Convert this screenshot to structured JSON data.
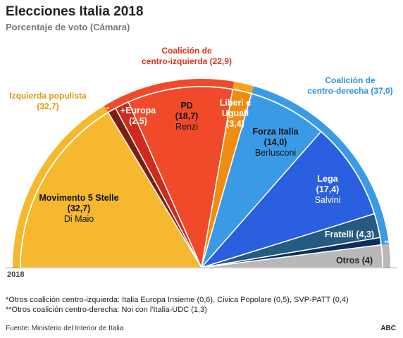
{
  "header": {
    "title": "Elecciones Italia 2018",
    "subtitle": "Porcentaje de voto (Cámara)"
  },
  "chart_data": {
    "type": "pie",
    "layout": "semicircle",
    "title": "Elecciones Italia 2018",
    "subtitle": "Porcentaje de voto (Cámara)",
    "slices": [
      {
        "name": "Movimento 5 Stelle",
        "value": 32.7,
        "label": "(32,7)",
        "leader": "Di Maio",
        "color": "#f5b82e",
        "group": "Izquierda populista"
      },
      {
        "name": "*",
        "value": 1.5,
        "label": "",
        "leader": "",
        "color": "#7a1f12",
        "group": "Coalición de centro-izquierda"
      },
      {
        "name": "+Europa",
        "value": 2.5,
        "label": "(2,5)",
        "leader": "",
        "color": "#cf2a1b",
        "group": "Coalición de centro-izquierda"
      },
      {
        "name": "PD",
        "value": 18.7,
        "label": "(18,7)",
        "leader": "Renzi",
        "color": "#f04a2a",
        "group": "Coalición de centro-izquierda"
      },
      {
        "name": "Liberi e Uguali",
        "value": 3.4,
        "label": "(3,4)",
        "leader": "",
        "color": "#f08c10",
        "group": ""
      },
      {
        "name": "Forza Italia",
        "value": 14.0,
        "label": "(14,0)",
        "leader": "Berlusconi",
        "color": "#3a9ae6",
        "group": "Coalición de centro-derecha"
      },
      {
        "name": "Lega",
        "value": 17.4,
        "label": "(17,4)",
        "leader": "Salvini",
        "color": "#2a5fe0",
        "group": "Coalición de centro-derecha"
      },
      {
        "name": "Fratelli",
        "value": 4.3,
        "label": "(4,3)",
        "leader": "",
        "color": "#255a82",
        "group": "Coalición de centro-derecha"
      },
      {
        "name": "**",
        "value": 1.3,
        "label": "",
        "leader": "",
        "color": "#0f2f5c",
        "group": "Coalición de centro-derecha"
      },
      {
        "name": "Otros",
        "value": 4.0,
        "label": "(4)",
        "leader": "",
        "color": "#b8b8b8",
        "group": ""
      }
    ],
    "coalitions": [
      {
        "name": "Izquierda populista",
        "value_label": "(32,7)",
        "color": "#f5b82e",
        "value": 32.7
      },
      {
        "name": "Coalición de centro-izquierda",
        "value_label": "(22,9)",
        "color": "#e8321e",
        "value": 22.9
      },
      {
        "name": "Coalición de centro-derecha",
        "value_label": "(37,0)",
        "color": "#3a9ae6",
        "value": 37.0
      }
    ],
    "coalition_label_lines": {
      "Izquierda populista": [
        "Izquierda populista",
        "(32,7)"
      ],
      "Coalición de centro-izquierda": [
        "Coalición de",
        "centro-izquierda (22,9)"
      ],
      "Coalición de centro-derecha": [
        "Coalición de",
        "centro-derecha (37,0)"
      ]
    },
    "slice_label_lines": {
      "Movimento 5 Stelle": [
        "Movimento 5 Stelle",
        "(32,7)",
        "Di Maio"
      ],
      "*": [
        "*"
      ],
      "+Europa": [
        "+Europa",
        "(2,5)"
      ],
      "PD": [
        "PD",
        "(18,7)",
        "Renzi"
      ],
      "Liberi e Uguali": [
        "Liberi e",
        "Uguali",
        "(3,4)"
      ],
      "Forza Italia": [
        "Forza Italia",
        "(14,0)",
        "Berlusconi"
      ],
      "Lega": [
        "Lega",
        "(17,4)",
        "Salvini"
      ],
      "Fratelli": [
        "Fratelli (4,3)"
      ],
      "**": [
        "**"
      ],
      "Otros": [
        "Otros (4)"
      ]
    },
    "year_label": "2018"
  },
  "notes": {
    "note1": "*Otros coalición centro-izquierda: Italia Europa Insieme (0,6), Civica Popolare (0,5), SVP-PATT (0,4)",
    "note2": "**Otros coalición centro-derecha: Noi con l'Italia-UDC (1,3)"
  },
  "footer": {
    "source": "Fuente: Ministerio del Interior de Italia",
    "brand": "ABC"
  }
}
